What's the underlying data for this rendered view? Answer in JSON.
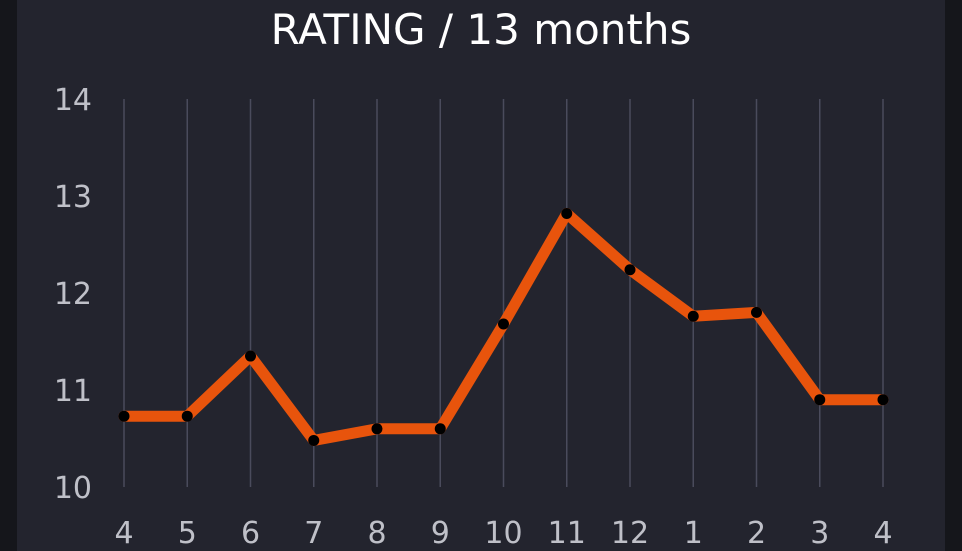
{
  "chart_data": {
    "type": "line",
    "title": "RATING / 13 months",
    "xlabel": "",
    "ylabel": "",
    "categories": [
      "4",
      "5",
      "6",
      "7",
      "8",
      "9",
      "10",
      "11",
      "12",
      "1",
      "2",
      "3",
      "4"
    ],
    "series": [
      {
        "values": [
          10.73,
          10.73,
          11.35,
          10.48,
          10.6,
          10.6,
          11.68,
          12.82,
          12.24,
          11.76,
          11.8,
          10.9,
          10.9
        ]
      }
    ],
    "ylim": [
      10,
      14
    ],
    "y_ticks": [
      "10",
      "11",
      "12",
      "13",
      "14"
    ],
    "grid": "vertical",
    "legend": "none",
    "colors": {
      "line": "#e8540c",
      "marker": "#000000",
      "grid": "#4a4b5c",
      "background": "#23242e",
      "text": "#bfc0c8",
      "title": "#ffffff"
    }
  }
}
